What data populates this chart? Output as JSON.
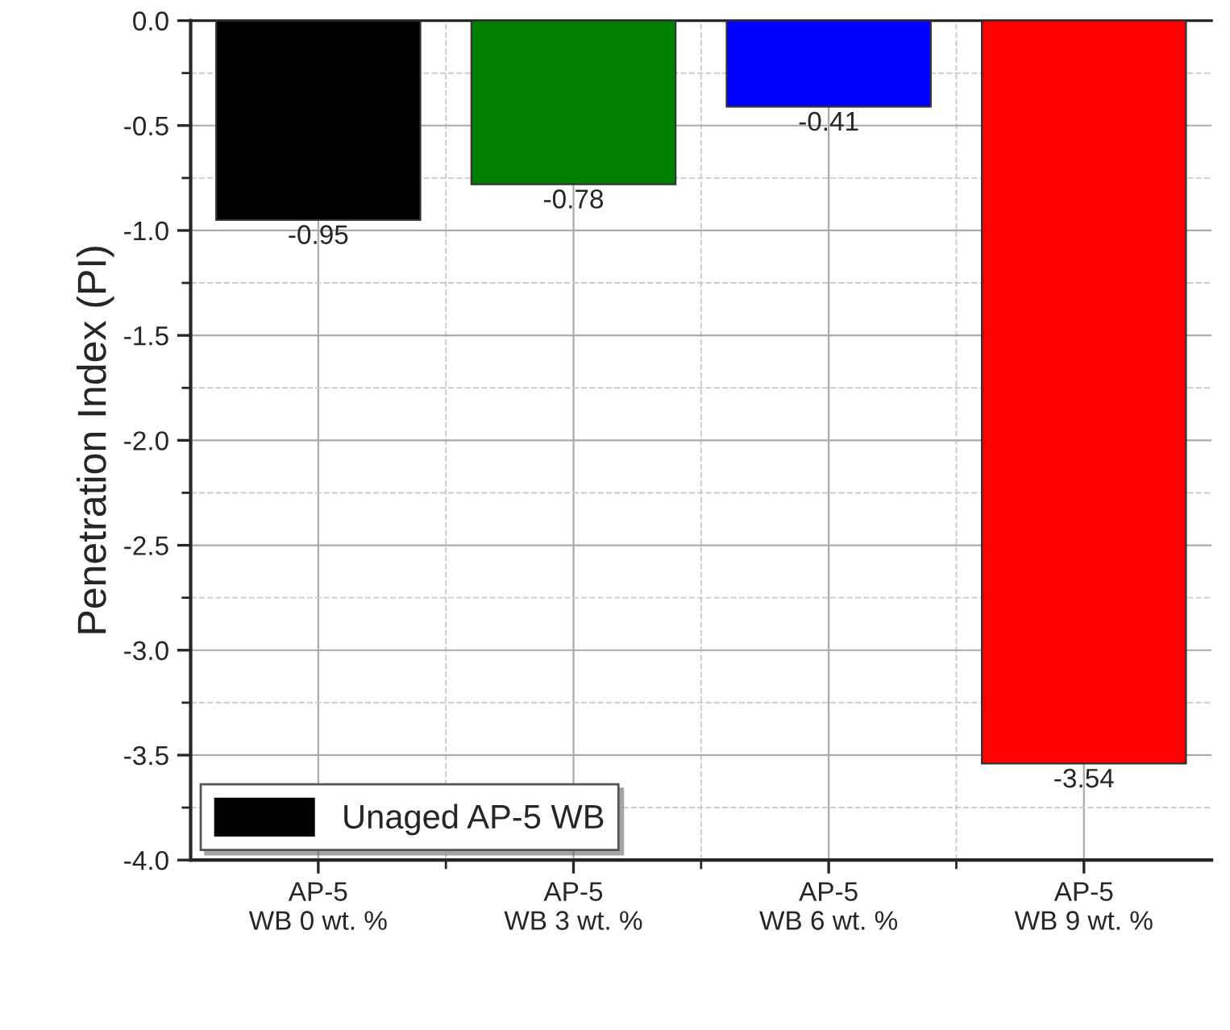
{
  "chart_data": {
    "type": "bar",
    "ylabel": "Penetration Index (PI)",
    "categories": [
      "AP-5\nWB 0 wt. %",
      "AP-5\nWB 3 wt. %",
      "AP-5\nWB 6 wt. %",
      "AP-5\nWB 9 wt. %"
    ],
    "series": [
      {
        "name": "Unaged AP-5 WB",
        "color": "#000000",
        "colors": [
          "#000000",
          "#008000",
          "#0000ff",
          "#ff0000"
        ],
        "values": [
          -0.95,
          -0.78,
          -0.41,
          -3.54
        ]
      }
    ],
    "ylim": [
      -4.0,
      0.0
    ],
    "yticks": [
      {
        "value": -4.0,
        "label": "-4.0"
      },
      {
        "value": -3.5,
        "label": "-3.5"
      },
      {
        "value": -3.0,
        "label": "-3.0"
      },
      {
        "value": -2.5,
        "label": "-2.5"
      },
      {
        "value": -2.0,
        "label": "-2.0"
      },
      {
        "value": -1.5,
        "label": "-1.5"
      },
      {
        "value": -1.0,
        "label": "-1.0"
      },
      {
        "value": -0.5,
        "label": "-0.5"
      },
      {
        "value": 0.0,
        "label": "0.0"
      }
    ],
    "grid": true,
    "legend": "bottom left",
    "data_labels": true
  }
}
